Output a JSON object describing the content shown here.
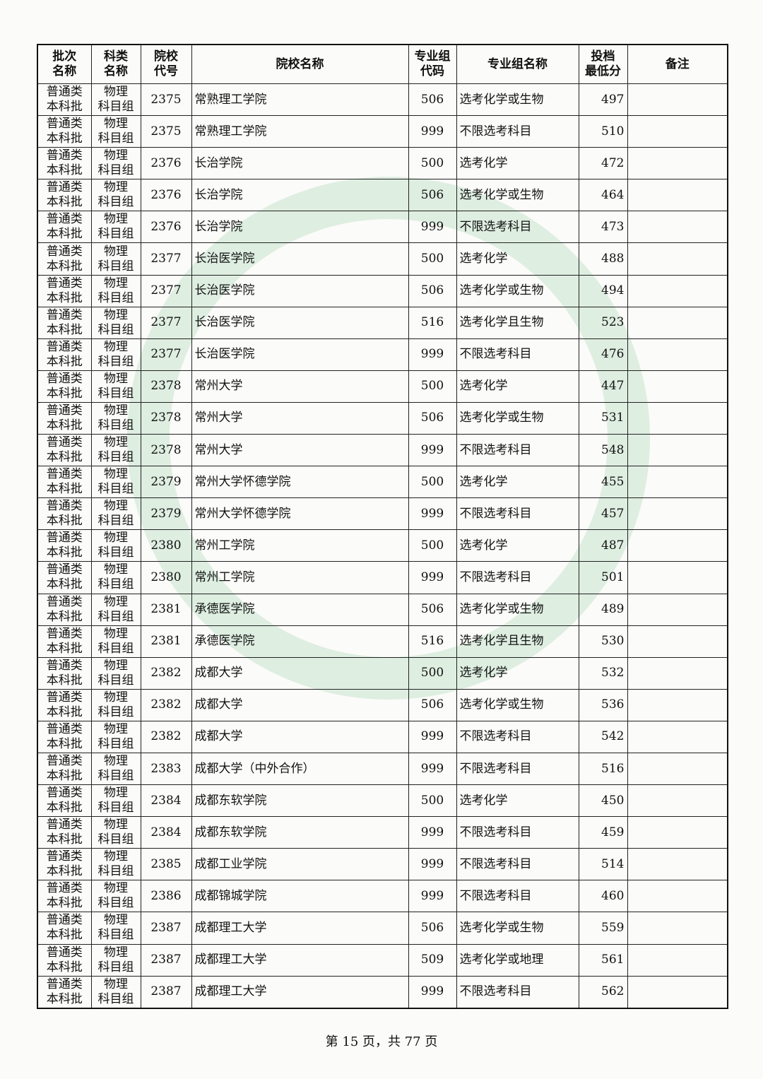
{
  "table": {
    "headers": [
      [
        "批次",
        "名称"
      ],
      [
        "科类",
        "名称"
      ],
      [
        "院校",
        "代号"
      ],
      [
        "院校名称"
      ],
      [
        "专业组",
        "代码"
      ],
      [
        "专业组名称"
      ],
      [
        "投档",
        "最低分"
      ],
      [
        "备注"
      ]
    ],
    "rows": [
      [
        [
          "普通类",
          "本科批"
        ],
        [
          "物理",
          "科目组"
        ],
        "2375",
        "常熟理工学院",
        "506",
        "选考化学或生物",
        "497"
      ],
      [
        [
          "普通类",
          "本科批"
        ],
        [
          "物理",
          "科目组"
        ],
        "2375",
        "常熟理工学院",
        "999",
        "不限选考科目",
        "510"
      ],
      [
        [
          "普通类",
          "本科批"
        ],
        [
          "物理",
          "科目组"
        ],
        "2376",
        "长治学院",
        "500",
        "选考化学",
        "472"
      ],
      [
        [
          "普通类",
          "本科批"
        ],
        [
          "物理",
          "科目组"
        ],
        "2376",
        "长治学院",
        "506",
        "选考化学或生物",
        "464"
      ],
      [
        [
          "普通类",
          "本科批"
        ],
        [
          "物理",
          "科目组"
        ],
        "2376",
        "长治学院",
        "999",
        "不限选考科目",
        "473"
      ],
      [
        [
          "普通类",
          "本科批"
        ],
        [
          "物理",
          "科目组"
        ],
        "2377",
        "长治医学院",
        "500",
        "选考化学",
        "488"
      ],
      [
        [
          "普通类",
          "本科批"
        ],
        [
          "物理",
          "科目组"
        ],
        "2377",
        "长治医学院",
        "506",
        "选考化学或生物",
        "494"
      ],
      [
        [
          "普通类",
          "本科批"
        ],
        [
          "物理",
          "科目组"
        ],
        "2377",
        "长治医学院",
        "516",
        "选考化学且生物",
        "523"
      ],
      [
        [
          "普通类",
          "本科批"
        ],
        [
          "物理",
          "科目组"
        ],
        "2377",
        "长治医学院",
        "999",
        "不限选考科目",
        "476"
      ],
      [
        [
          "普通类",
          "本科批"
        ],
        [
          "物理",
          "科目组"
        ],
        "2378",
        "常州大学",
        "500",
        "选考化学",
        "447"
      ],
      [
        [
          "普通类",
          "本科批"
        ],
        [
          "物理",
          "科目组"
        ],
        "2378",
        "常州大学",
        "506",
        "选考化学或生物",
        "531"
      ],
      [
        [
          "普通类",
          "本科批"
        ],
        [
          "物理",
          "科目组"
        ],
        "2378",
        "常州大学",
        "999",
        "不限选考科目",
        "548"
      ],
      [
        [
          "普通类",
          "本科批"
        ],
        [
          "物理",
          "科目组"
        ],
        "2379",
        "常州大学怀德学院",
        "500",
        "选考化学",
        "455"
      ],
      [
        [
          "普通类",
          "本科批"
        ],
        [
          "物理",
          "科目组"
        ],
        "2379",
        "常州大学怀德学院",
        "999",
        "不限选考科目",
        "457"
      ],
      [
        [
          "普通类",
          "本科批"
        ],
        [
          "物理",
          "科目组"
        ],
        "2380",
        "常州工学院",
        "500",
        "选考化学",
        "487"
      ],
      [
        [
          "普通类",
          "本科批"
        ],
        [
          "物理",
          "科目组"
        ],
        "2380",
        "常州工学院",
        "999",
        "不限选考科目",
        "501"
      ],
      [
        [
          "普通类",
          "本科批"
        ],
        [
          "物理",
          "科目组"
        ],
        "2381",
        "承德医学院",
        "506",
        "选考化学或生物",
        "489"
      ],
      [
        [
          "普通类",
          "本科批"
        ],
        [
          "物理",
          "科目组"
        ],
        "2381",
        "承德医学院",
        "516",
        "选考化学且生物",
        "530"
      ],
      [
        [
          "普通类",
          "本科批"
        ],
        [
          "物理",
          "科目组"
        ],
        "2382",
        "成都大学",
        "500",
        "选考化学",
        "532"
      ],
      [
        [
          "普通类",
          "本科批"
        ],
        [
          "物理",
          "科目组"
        ],
        "2382",
        "成都大学",
        "506",
        "选考化学或生物",
        "536"
      ],
      [
        [
          "普通类",
          "本科批"
        ],
        [
          "物理",
          "科目组"
        ],
        "2382",
        "成都大学",
        "999",
        "不限选考科目",
        "542"
      ],
      [
        [
          "普通类",
          "本科批"
        ],
        [
          "物理",
          "科目组"
        ],
        "2383",
        "成都大学（中外合作）",
        "999",
        "不限选考科目",
        "516"
      ],
      [
        [
          "普通类",
          "本科批"
        ],
        [
          "物理",
          "科目组"
        ],
        "2384",
        "成都东软学院",
        "500",
        "选考化学",
        "450"
      ],
      [
        [
          "普通类",
          "本科批"
        ],
        [
          "物理",
          "科目组"
        ],
        "2384",
        "成都东软学院",
        "999",
        "不限选考科目",
        "459"
      ],
      [
        [
          "普通类",
          "本科批"
        ],
        [
          "物理",
          "科目组"
        ],
        "2385",
        "成都工业学院",
        "999",
        "不限选考科目",
        "514"
      ],
      [
        [
          "普通类",
          "本科批"
        ],
        [
          "物理",
          "科目组"
        ],
        "2386",
        "成都锦城学院",
        "999",
        "不限选考科目",
        "460"
      ],
      [
        [
          "普通类",
          "本科批"
        ],
        [
          "物理",
          "科目组"
        ],
        "2387",
        "成都理工大学",
        "506",
        "选考化学或生物",
        "559"
      ],
      [
        [
          "普通类",
          "本科批"
        ],
        [
          "物理",
          "科目组"
        ],
        "2387",
        "成都理工大学",
        "509",
        "选考化学或地理",
        "561"
      ],
      [
        [
          "普通类",
          "本科批"
        ],
        [
          "物理",
          "科目组"
        ],
        "2387",
        "成都理工大学",
        "999",
        "不限选考科目",
        "562"
      ]
    ]
  },
  "footer": "第 15 页，共 77 页"
}
